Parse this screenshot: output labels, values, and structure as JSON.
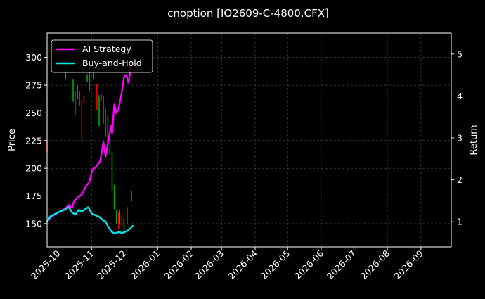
{
  "chart_data": {
    "type": "line",
    "title": "cnoption [IO2609-C-4800.CFX]",
    "xlabel": "",
    "ylabel": "Price",
    "y2label": "Return",
    "x_ticks": [
      "2025-10",
      "2025-11",
      "2025-12",
      "2026-01",
      "2026-02",
      "2026-03",
      "2026-04",
      "2026-05",
      "2026-06",
      "2026-07",
      "2026-08",
      "2026-09"
    ],
    "y_ticks": [
      150,
      175,
      200,
      225,
      250,
      275,
      300
    ],
    "y2_ticks": [
      1,
      2,
      3,
      4,
      5
    ],
    "xlim": [
      "2025-09-21",
      "2026-09-29"
    ],
    "ylim": [
      129,
      322
    ],
    "y2lim": [
      0.4,
      5.5
    ],
    "grid": true,
    "legend_position": "top-left",
    "colors": {
      "ai_strategy": "#ff00ff",
      "buy_and_hold": "#00e5ee",
      "candle_up": "#00aa00",
      "candle_down": "#ff0000",
      "grid": "#555555",
      "background": "#000000"
    },
    "series": [
      {
        "name": "AI Strategy",
        "axis": "right",
        "points": [
          [
            "2025-09-21",
            1.0
          ],
          [
            "2025-09-24",
            1.1
          ],
          [
            "2025-10-01",
            1.22
          ],
          [
            "2025-10-08",
            1.32
          ],
          [
            "2025-10-11",
            1.4
          ],
          [
            "2025-10-14",
            1.33
          ],
          [
            "2025-10-16",
            1.5
          ],
          [
            "2025-10-20",
            1.6
          ],
          [
            "2025-10-23",
            1.65
          ],
          [
            "2025-10-27",
            1.85
          ],
          [
            "2025-10-30",
            1.95
          ],
          [
            "2025-11-02",
            2.25
          ],
          [
            "2025-11-05",
            2.3
          ],
          [
            "2025-11-09",
            2.45
          ],
          [
            "2025-11-12",
            2.9
          ],
          [
            "2025-11-14",
            2.55
          ],
          [
            "2025-11-17",
            3.0
          ],
          [
            "2025-11-19",
            3.3
          ],
          [
            "2025-11-20",
            3.1
          ],
          [
            "2025-11-22",
            3.8
          ],
          [
            "2025-11-24",
            3.6
          ],
          [
            "2025-11-26",
            3.7
          ],
          [
            "2025-11-28",
            3.95
          ],
          [
            "2025-12-01",
            4.45
          ],
          [
            "2025-12-03",
            4.5
          ],
          [
            "2025-12-05",
            4.32
          ],
          [
            "2025-12-07",
            4.6
          ],
          [
            "2025-12-08",
            4.8
          ]
        ]
      },
      {
        "name": "Buy-and-Hold",
        "axis": "right",
        "points": [
          [
            "2025-09-21",
            1.0
          ],
          [
            "2025-09-24",
            1.13
          ],
          [
            "2025-10-01",
            1.22
          ],
          [
            "2025-10-08",
            1.3
          ],
          [
            "2025-10-11",
            1.35
          ],
          [
            "2025-10-14",
            1.22
          ],
          [
            "2025-10-17",
            1.17
          ],
          [
            "2025-10-20",
            1.28
          ],
          [
            "2025-10-23",
            1.24
          ],
          [
            "2025-10-26",
            1.3
          ],
          [
            "2025-10-29",
            1.35
          ],
          [
            "2025-11-01",
            1.2
          ],
          [
            "2025-11-05",
            1.15
          ],
          [
            "2025-11-08",
            1.12
          ],
          [
            "2025-11-11",
            1.05
          ],
          [
            "2025-11-14",
            1.0
          ],
          [
            "2025-11-17",
            0.85
          ],
          [
            "2025-11-20",
            0.75
          ],
          [
            "2025-11-23",
            0.72
          ],
          [
            "2025-11-26",
            0.76
          ],
          [
            "2025-11-29",
            0.73
          ],
          [
            "2025-12-02",
            0.76
          ],
          [
            "2025-12-05",
            0.8
          ],
          [
            "2025-12-09",
            0.9
          ]
        ]
      }
    ],
    "candles": [
      {
        "date": "2025-09-21",
        "low": 215,
        "high": 225,
        "up": false
      },
      {
        "date": "2025-10-08",
        "low": 280,
        "high": 290,
        "up": true
      },
      {
        "date": "2025-10-15",
        "low": 260,
        "high": 280,
        "up": true
      },
      {
        "date": "2025-10-17",
        "low": 248,
        "high": 270,
        "up": false
      },
      {
        "date": "2025-10-19",
        "low": 262,
        "high": 275,
        "up": true
      },
      {
        "date": "2025-10-21",
        "low": 256,
        "high": 270,
        "up": false
      },
      {
        "date": "2025-10-23",
        "low": 224,
        "high": 262,
        "up": false
      },
      {
        "date": "2025-10-25",
        "low": 258,
        "high": 266,
        "up": false
      },
      {
        "date": "2025-10-28",
        "low": 278,
        "high": 285,
        "up": true
      },
      {
        "date": "2025-10-30",
        "low": 270,
        "high": 292,
        "up": true
      },
      {
        "date": "2025-11-03",
        "low": 280,
        "high": 288,
        "up": true
      },
      {
        "date": "2025-11-06",
        "low": 252,
        "high": 276,
        "up": false
      },
      {
        "date": "2025-11-08",
        "low": 238,
        "high": 266,
        "up": true
      },
      {
        "date": "2025-11-10",
        "low": 260,
        "high": 268,
        "up": false
      },
      {
        "date": "2025-11-12",
        "low": 240,
        "high": 265,
        "up": false
      },
      {
        "date": "2025-11-14",
        "low": 228,
        "high": 255,
        "up": false
      },
      {
        "date": "2025-11-16",
        "low": 220,
        "high": 248,
        "up": true
      },
      {
        "date": "2025-11-18",
        "low": 212,
        "high": 228,
        "up": true
      },
      {
        "date": "2025-11-20",
        "low": 180,
        "high": 215,
        "up": true
      },
      {
        "date": "2025-11-22",
        "low": 163,
        "high": 185,
        "up": true
      },
      {
        "date": "2025-11-24",
        "low": 150,
        "high": 162,
        "up": true
      },
      {
        "date": "2025-11-26",
        "low": 145,
        "high": 160,
        "up": false
      },
      {
        "date": "2025-11-27",
        "low": 150,
        "high": 162,
        "up": true
      },
      {
        "date": "2025-11-29",
        "low": 147,
        "high": 158,
        "up": false
      },
      {
        "date": "2025-12-01",
        "low": 143,
        "high": 155,
        "up": true
      },
      {
        "date": "2025-12-04",
        "low": 150,
        "high": 165,
        "up": false
      },
      {
        "date": "2025-12-08",
        "low": 170,
        "high": 180,
        "up": false
      }
    ]
  }
}
